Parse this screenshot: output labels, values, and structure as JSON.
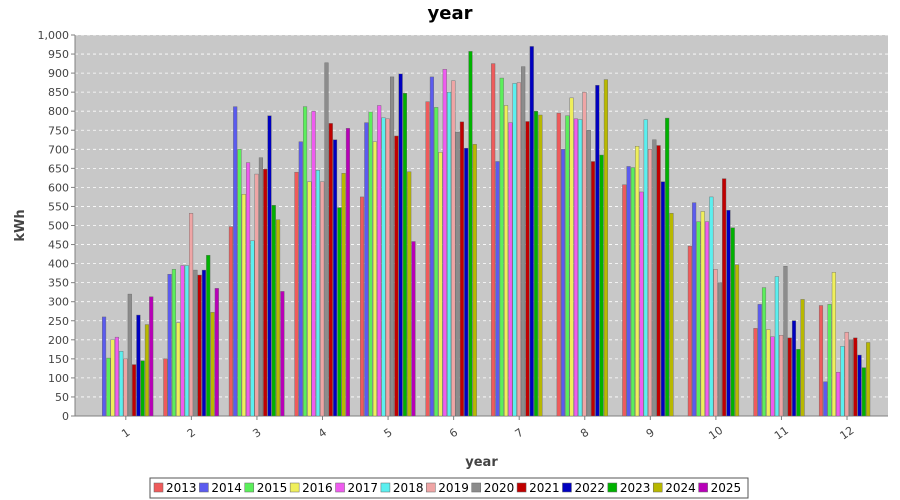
{
  "chart_data": {
    "type": "bar",
    "title": "year",
    "xlabel": "year",
    "ylabel": "kWh",
    "ylim": [
      0,
      1000
    ],
    "y_tick_step": 50,
    "grid": true,
    "legend_position": "bottom",
    "plot_background": "#c8c8c8",
    "categories": [
      "1",
      "2",
      "3",
      "4",
      "5",
      "6",
      "7",
      "8",
      "9",
      "10",
      "11",
      "12"
    ],
    "series": [
      {
        "name": "2013",
        "color": "#ef5b5b",
        "values": [
          0,
          150,
          497,
          640,
          575,
          825,
          925,
          795,
          607,
          446,
          230,
          290
        ]
      },
      {
        "name": "2014",
        "color": "#5b5bef",
        "values": [
          260,
          372,
          812,
          720,
          770,
          890,
          668,
          700,
          655,
          560,
          293,
          90
        ]
      },
      {
        "name": "2015",
        "color": "#5bef5b",
        "values": [
          152,
          385,
          700,
          812,
          798,
          810,
          887,
          788,
          652,
          510,
          337,
          293
        ]
      },
      {
        "name": "2016",
        "color": "#efef5b",
        "values": [
          200,
          245,
          582,
          615,
          720,
          692,
          815,
          835,
          708,
          537,
          227,
          377
        ]
      },
      {
        "name": "2017",
        "color": "#ef5bef",
        "values": [
          207,
          395,
          665,
          800,
          815,
          910,
          770,
          780,
          588,
          510,
          208,
          115
        ]
      },
      {
        "name": "2018",
        "color": "#5befef",
        "values": [
          170,
          395,
          460,
          645,
          783,
          850,
          873,
          778,
          778,
          575,
          366,
          183
        ]
      },
      {
        "name": "2019",
        "color": "#efa5a5",
        "values": [
          150,
          532,
          635,
          615,
          780,
          880,
          875,
          850,
          700,
          385,
          212,
          220
        ]
      },
      {
        "name": "2020",
        "color": "#8c8c8c",
        "values": [
          320,
          383,
          678,
          927,
          890,
          745,
          917,
          750,
          725,
          350,
          393,
          200
        ]
      },
      {
        "name": "2021",
        "color": "#c00000",
        "values": [
          135,
          370,
          648,
          768,
          735,
          772,
          773,
          668,
          710,
          623,
          205,
          205
        ]
      },
      {
        "name": "2022",
        "color": "#0000c0",
        "values": [
          265,
          383,
          788,
          725,
          898,
          703,
          970,
          868,
          615,
          540,
          250,
          160
        ]
      },
      {
        "name": "2023",
        "color": "#00b200",
        "values": [
          145,
          422,
          553,
          547,
          847,
          957,
          800,
          685,
          782,
          494,
          175,
          127
        ]
      },
      {
        "name": "2024",
        "color": "#b8b800",
        "values": [
          240,
          272,
          515,
          637,
          641,
          713,
          790,
          883,
          532,
          397,
          306,
          193
        ]
      },
      {
        "name": "2025",
        "color": "#b800b8",
        "values": [
          313,
          335,
          327,
          755,
          458,
          0,
          0,
          0,
          0,
          0,
          0,
          0
        ]
      }
    ]
  }
}
